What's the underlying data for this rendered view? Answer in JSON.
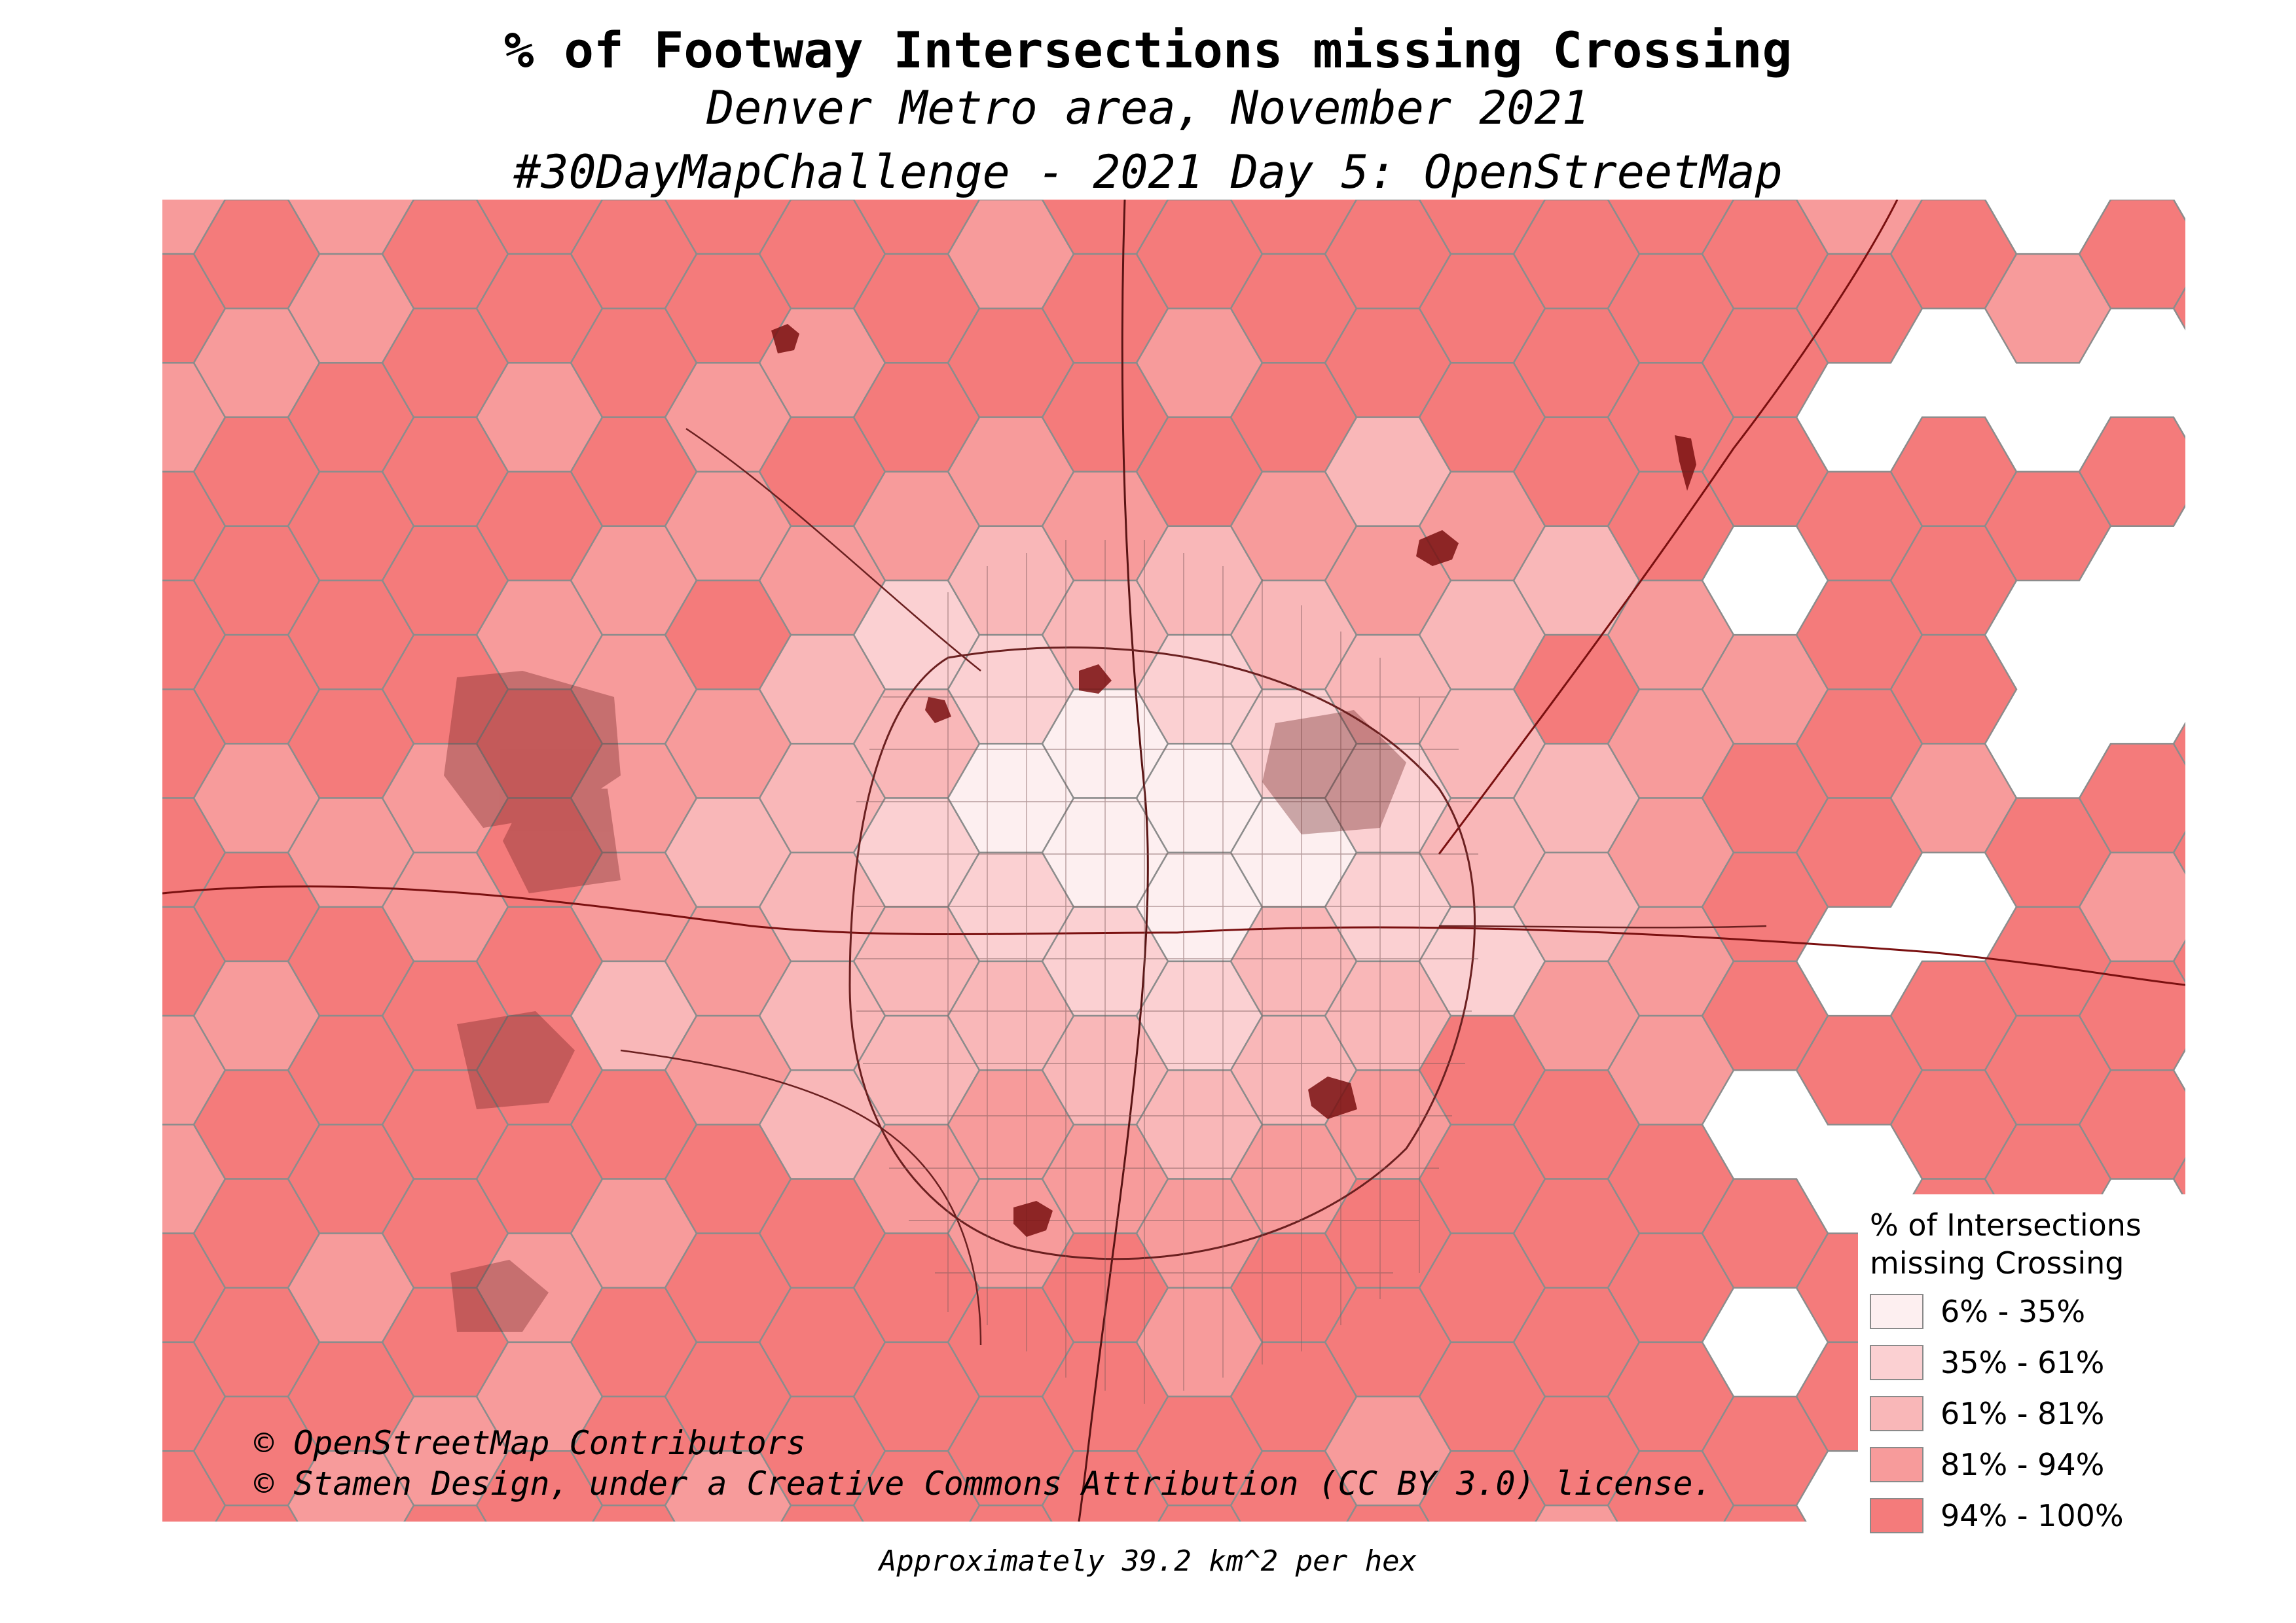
{
  "title": "% of Footway Intersections missing Crossing",
  "subtitle": "Denver Metro area, November 2021",
  "challenge": "#30DayMapChallenge - 2021 Day 5: OpenStreetMap",
  "attribution": [
    "© OpenStreetMap Contributors",
    "© Stamen Design, under a Creative Commons Attribution (CC BY 3.0) license."
  ],
  "footnote": "Approximately 39.2 km^2 per hex",
  "legend": {
    "title_line1": "% of Intersections",
    "title_line2": "missing Crossing",
    "classes": [
      {
        "label": "6% - 35%",
        "color": "#fdeff0"
      },
      {
        "label": "35% - 61%",
        "color": "#fbd0d2"
      },
      {
        "label": "61% - 81%",
        "color": "#f9b7b8"
      },
      {
        "label": "81% - 94%",
        "color": "#f79b9b"
      },
      {
        "label": "94% - 100%",
        "color": "#f47b7b"
      }
    ]
  },
  "colors": {
    "hex_stroke": "#8c8c8c",
    "park_dark": "#7a1010",
    "road_dark": "#5a1414"
  }
}
